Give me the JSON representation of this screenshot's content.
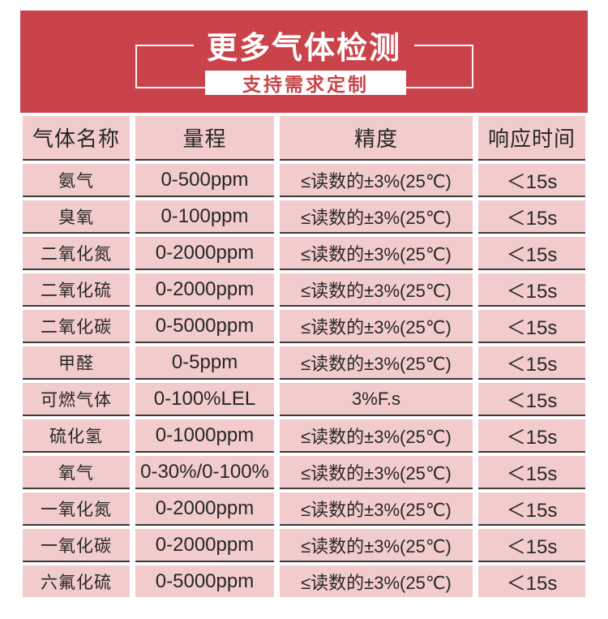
{
  "banner": {
    "title": "更多气体检测",
    "subtitle": "支持需求定制",
    "bg_color": "#ca434a",
    "subtitle_text_color": "#c9464b",
    "bracket_line_color": "#ffffff"
  },
  "table": {
    "cell_bg_color": "#f2cccc",
    "separator_color": "#3b3b3b",
    "headers": [
      "气体名称",
      "量程",
      "精度",
      "响应时间"
    ],
    "rows": [
      [
        "氨气",
        "0-500ppm",
        "≤读数的±3%(25℃)",
        "＜15s"
      ],
      [
        "臭氧",
        "0-100ppm",
        "≤读数的±3%(25℃)",
        "＜15s"
      ],
      [
        "二氧化氮",
        "0-2000ppm",
        "≤读数的±3%(25℃)",
        "＜15s"
      ],
      [
        "二氧化硫",
        "0-2000ppm",
        "≤读数的±3%(25℃)",
        "＜15s"
      ],
      [
        "二氧化碳",
        "0-5000ppm",
        "≤读数的±3%(25℃)",
        "＜15s"
      ],
      [
        "甲醛",
        "0-5ppm",
        "≤读数的±3%(25℃)",
        "＜15s"
      ],
      [
        "可燃气体",
        "0-100%LEL",
        "3%F.s",
        "＜15s"
      ],
      [
        "硫化氢",
        "0-1000ppm",
        "≤读数的±3%(25℃)",
        "＜15s"
      ],
      [
        "氧气",
        "0-30%/0-100%",
        "≤读数的±3%(25℃)",
        "＜15s"
      ],
      [
        "一氧化氮",
        "0-2000ppm",
        "≤读数的±3%(25℃)",
        "＜15s"
      ],
      [
        "一氧化碳",
        "0-2000ppm",
        "≤读数的±3%(25℃)",
        "＜15s"
      ],
      [
        "六氟化硫",
        "0-5000ppm",
        "≤读数的±3%(25℃)",
        "＜15s"
      ]
    ]
  },
  "chart_data": {
    "type": "table",
    "title": "更多气体检测",
    "subtitle": "支持需求定制",
    "columns": [
      "气体名称",
      "量程",
      "精度",
      "响应时间"
    ],
    "rows": [
      [
        "氨气",
        "0-500ppm",
        "≤读数的±3%(25℃)",
        "＜15s"
      ],
      [
        "臭氧",
        "0-100ppm",
        "≤读数的±3%(25℃)",
        "＜15s"
      ],
      [
        "二氧化氮",
        "0-2000ppm",
        "≤读数的±3%(25℃)",
        "＜15s"
      ],
      [
        "二氧化硫",
        "0-2000ppm",
        "≤读数的±3%(25℃)",
        "＜15s"
      ],
      [
        "二氧化碳",
        "0-5000ppm",
        "≤读数的±3%(25℃)",
        "＜15s"
      ],
      [
        "甲醛",
        "0-5ppm",
        "≤读数的±3%(25℃)",
        "＜15s"
      ],
      [
        "可燃气体",
        "0-100%LEL",
        "3%F.s",
        "＜15s"
      ],
      [
        "硫化氢",
        "0-1000ppm",
        "≤读数的±3%(25℃)",
        "＜15s"
      ],
      [
        "氧气",
        "0-30%/0-100%",
        "≤读数的±3%(25℃)",
        "＜15s"
      ],
      [
        "一氧化氮",
        "0-2000ppm",
        "≤读数的±3%(25℃)",
        "＜15s"
      ],
      [
        "一氧化碳",
        "0-2000ppm",
        "≤读数的±3%(25℃)",
        "＜15s"
      ],
      [
        "六氟化硫",
        "0-5000ppm",
        "≤读数的±3%(25℃)",
        "＜15s"
      ]
    ]
  }
}
